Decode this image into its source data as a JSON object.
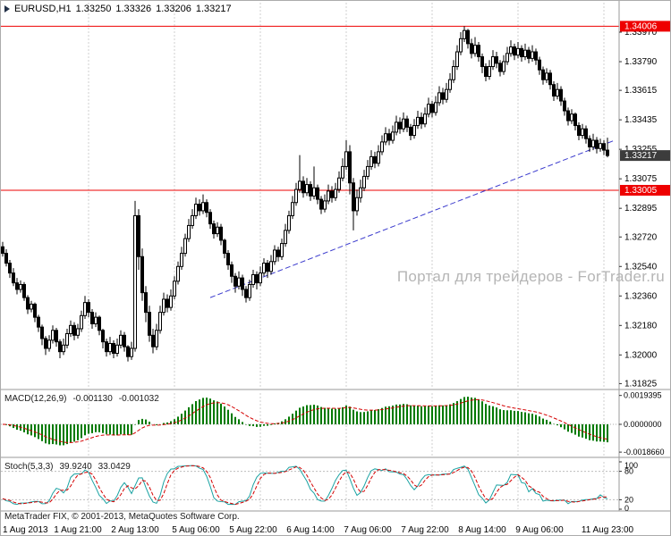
{
  "title": {
    "symbol_period": "EURUSD,H1",
    "open": "1.33250",
    "high": "1.33326",
    "low": "1.33206",
    "close": "1.33217"
  },
  "watermark": "Портал для трейдеров - ForTrader.ru",
  "footer": {
    "copyright": "MetaTrader FIX, © 2001-2013, MetaQuotes Software Corp."
  },
  "colors": {
    "background": "#ffffff",
    "grid": "#cfcfcf",
    "candle_bull": "#ffffff",
    "candle_bear": "#000000",
    "candle_outline": "#000000",
    "red_line": "#ee0000",
    "trendline": "#3b3bcd",
    "axis_text": "#000000",
    "marker_line_bg": "#ee0000",
    "marker_current_bg": "#3c3c3c",
    "macd_histogram": "#007a00",
    "macd_signal": "#d40000",
    "stoch_main": "#1aa3a3",
    "stoch_signal": "#d40000",
    "watermark": "#b5b5b5"
  },
  "chart_data": {
    "type": "candlestick",
    "title": "EURUSD,H1",
    "main": {
      "price_max": 1.3415,
      "price_min": 1.318,
      "axis_labels": [
        "1.33970",
        "1.33790",
        "1.33615",
        "1.33435",
        "1.33255",
        "1.33075",
        "1.32895",
        "1.32720",
        "1.32540",
        "1.32360",
        "1.32180",
        "1.32000",
        "1.31825"
      ],
      "markers": {
        "high": {
          "label": "1.34006",
          "price": 1.34006
        },
        "level": {
          "label": "1.33005",
          "price": 1.33005
        },
        "current": {
          "label": "1.33217",
          "price": 1.33217
        }
      },
      "horizontal_lines": [
        1.34006,
        1.33005
      ],
      "trendline": {
        "from_index": 58,
        "from_price": 1.3235,
        "to_index": 171,
        "to_price": 1.3331
      },
      "day_separator_indices": [
        24,
        48,
        72,
        96,
        120,
        144,
        168
      ]
    },
    "time_labels": [
      {
        "index": 0,
        "label": "1 Aug 2013"
      },
      {
        "index": 21,
        "label": "1 Aug 21:00"
      },
      {
        "index": 37,
        "label": "2 Aug 13:00"
      },
      {
        "index": 54,
        "label": "5 Aug 06:00"
      },
      {
        "index": 70,
        "label": "5 Aug 22:00"
      },
      {
        "index": 86,
        "label": "6 Aug 14:00"
      },
      {
        "index": 102,
        "label": "7 Aug 06:00"
      },
      {
        "index": 118,
        "label": "7 Aug 22:00"
      },
      {
        "index": 134,
        "label": "8 Aug 14:00"
      },
      {
        "index": 150,
        "label": "9 Aug 06:00"
      },
      {
        "index": 169,
        "label": "11 Aug 23:00"
      }
    ],
    "macd": {
      "name": "MACD(12,26,9)",
      "value_main": "-0.001130",
      "value_signal": "-0.001032",
      "params": [
        12,
        26,
        9
      ],
      "scale_max": 0.0021,
      "axis_labels": [
        "0.0019395",
        "0.0000000",
        "-0.0018660"
      ]
    },
    "stoch": {
      "name": "Stoch(5,3,3)",
      "value_main": "39.9240",
      "value_signal": "33.0429",
      "params": [
        5,
        3,
        3
      ],
      "levels": [
        80,
        20
      ],
      "axis_labels": [
        "100",
        "80",
        "20",
        "0"
      ]
    },
    "candles": [
      [
        1.3266,
        1.3269,
        1.326,
        1.3262
      ],
      [
        1.3262,
        1.32645,
        1.3254,
        1.3256
      ],
      [
        1.3256,
        1.3258,
        1.3247,
        1.325
      ],
      [
        1.325,
        1.3253,
        1.3242,
        1.3244
      ],
      [
        1.3244,
        1.3247,
        1.3237,
        1.324
      ],
      [
        1.324,
        1.32455,
        1.3238,
        1.3243
      ],
      [
        1.3243,
        1.32445,
        1.3233,
        1.3235
      ],
      [
        1.3235,
        1.32365,
        1.3225,
        1.3228
      ],
      [
        1.3228,
        1.3233,
        1.3226,
        1.3231
      ],
      [
        1.3231,
        1.3232,
        1.322,
        1.3223
      ],
      [
        1.3223,
        1.32245,
        1.3214,
        1.3217
      ],
      [
        1.3217,
        1.32185,
        1.3206,
        1.321
      ],
      [
        1.321,
        1.32115,
        1.32,
        1.3204
      ],
      [
        1.3204,
        1.3212,
        1.3202,
        1.3209
      ],
      [
        1.3209,
        1.3218,
        1.3207,
        1.3215
      ],
      [
        1.3215,
        1.32165,
        1.3205,
        1.3208
      ],
      [
        1.3208,
        1.32095,
        1.3198,
        1.3202
      ],
      [
        1.3202,
        1.321,
        1.32,
        1.3206
      ],
      [
        1.3206,
        1.3216,
        1.3204,
        1.3213
      ],
      [
        1.3213,
        1.3221,
        1.3211,
        1.3218
      ],
      [
        1.3218,
        1.322,
        1.3209,
        1.3212
      ],
      [
        1.3212,
        1.3219,
        1.321,
        1.3216
      ],
      [
        1.3216,
        1.3227,
        1.3214,
        1.3224
      ],
      [
        1.3224,
        1.3236,
        1.3222,
        1.3232
      ],
      [
        1.3232,
        1.3234,
        1.3223,
        1.3226
      ],
      [
        1.3226,
        1.3228,
        1.3216,
        1.3219
      ],
      [
        1.3219,
        1.3226,
        1.3217,
        1.3223
      ],
      [
        1.3223,
        1.3224,
        1.3212,
        1.3215
      ],
      [
        1.3215,
        1.3216,
        1.3204,
        1.3208
      ],
      [
        1.3208,
        1.321,
        1.3199,
        1.3202
      ],
      [
        1.3202,
        1.3211,
        1.32,
        1.3207
      ],
      [
        1.3207,
        1.3209,
        1.3198,
        1.3201
      ],
      [
        1.3201,
        1.321,
        1.3199,
        1.3206
      ],
      [
        1.3206,
        1.3215,
        1.3204,
        1.3212
      ],
      [
        1.3212,
        1.3214,
        1.3202,
        1.3205
      ],
      [
        1.3205,
        1.3206,
        1.3196,
        1.3199
      ],
      [
        1.3199,
        1.3208,
        1.3197,
        1.3204
      ],
      [
        1.3204,
        1.3294,
        1.3202,
        1.3285
      ],
      [
        1.3285,
        1.3289,
        1.3252,
        1.326
      ],
      [
        1.326,
        1.3265,
        1.3233,
        1.3238
      ],
      [
        1.3238,
        1.3242,
        1.322,
        1.3226
      ],
      [
        1.3226,
        1.323,
        1.3208,
        1.3212
      ],
      [
        1.3212,
        1.3216,
        1.3201,
        1.3205
      ],
      [
        1.3205,
        1.3219,
        1.3203,
        1.3215
      ],
      [
        1.3215,
        1.323,
        1.3213,
        1.3226
      ],
      [
        1.3226,
        1.3238,
        1.3224,
        1.3234
      ],
      [
        1.3234,
        1.3237,
        1.3226,
        1.3229
      ],
      [
        1.3229,
        1.324,
        1.3227,
        1.3236
      ],
      [
        1.3236,
        1.3248,
        1.3234,
        1.3245
      ],
      [
        1.3245,
        1.3257,
        1.3243,
        1.3254
      ],
      [
        1.3254,
        1.3266,
        1.3252,
        1.3262
      ],
      [
        1.3262,
        1.3274,
        1.326,
        1.3271
      ],
      [
        1.3271,
        1.3283,
        1.3269,
        1.3279
      ],
      [
        1.3279,
        1.3289,
        1.3277,
        1.3285
      ],
      [
        1.3285,
        1.3296,
        1.3283,
        1.3292
      ],
      [
        1.3292,
        1.3295,
        1.3285,
        1.3288
      ],
      [
        1.3288,
        1.3298,
        1.3286,
        1.3293
      ],
      [
        1.3293,
        1.3295,
        1.3284,
        1.3287
      ],
      [
        1.3287,
        1.3289,
        1.3277,
        1.328
      ],
      [
        1.328,
        1.3282,
        1.3271,
        1.3274
      ],
      [
        1.3274,
        1.3281,
        1.3272,
        1.3278
      ],
      [
        1.3278,
        1.328,
        1.3267,
        1.327
      ],
      [
        1.327,
        1.3271,
        1.3259,
        1.3262
      ],
      [
        1.3262,
        1.3264,
        1.3252,
        1.3255
      ],
      [
        1.3255,
        1.3257,
        1.3244,
        1.3248
      ],
      [
        1.3248,
        1.325,
        1.3238,
        1.3242
      ],
      [
        1.3242,
        1.3251,
        1.324,
        1.3247
      ],
      [
        1.3247,
        1.3249,
        1.3236,
        1.324
      ],
      [
        1.324,
        1.3242,
        1.3232,
        1.3235
      ],
      [
        1.3235,
        1.3246,
        1.3233,
        1.3243
      ],
      [
        1.3243,
        1.3252,
        1.3241,
        1.3249
      ],
      [
        1.3249,
        1.3251,
        1.324,
        1.3244
      ],
      [
        1.3244,
        1.3254,
        1.3242,
        1.325
      ],
      [
        1.325,
        1.3259,
        1.3248,
        1.3256
      ],
      [
        1.3256,
        1.3258,
        1.3247,
        1.3251
      ],
      [
        1.3251,
        1.3261,
        1.3249,
        1.3257
      ],
      [
        1.3257,
        1.3267,
        1.3255,
        1.3264
      ],
      [
        1.3264,
        1.3266,
        1.3257,
        1.326
      ],
      [
        1.326,
        1.3271,
        1.3258,
        1.3268
      ],
      [
        1.3268,
        1.328,
        1.3266,
        1.3276
      ],
      [
        1.3276,
        1.3288,
        1.3274,
        1.3285
      ],
      [
        1.3285,
        1.3297,
        1.3283,
        1.3293
      ],
      [
        1.3293,
        1.3305,
        1.3291,
        1.3301
      ],
      [
        1.3301,
        1.3322,
        1.3299,
        1.3306
      ],
      [
        1.3306,
        1.3309,
        1.3296,
        1.3299
      ],
      [
        1.3299,
        1.3308,
        1.3297,
        1.3304
      ],
      [
        1.3304,
        1.3306,
        1.3294,
        1.3297
      ],
      [
        1.3297,
        1.3315,
        1.3295,
        1.3302
      ],
      [
        1.3302,
        1.3304,
        1.3292,
        1.3295
      ],
      [
        1.3295,
        1.3297,
        1.3286,
        1.3289
      ],
      [
        1.3289,
        1.3298,
        1.3287,
        1.3294
      ],
      [
        1.3294,
        1.3304,
        1.3292,
        1.33
      ],
      [
        1.33,
        1.3303,
        1.3293,
        1.3296
      ],
      [
        1.3296,
        1.3305,
        1.3294,
        1.3301
      ],
      [
        1.3301,
        1.3312,
        1.3299,
        1.3308
      ],
      [
        1.3308,
        1.332,
        1.3306,
        1.3315
      ],
      [
        1.3315,
        1.3331,
        1.3313,
        1.3324
      ],
      [
        1.3324,
        1.3328,
        1.3298,
        1.3305
      ],
      [
        1.3305,
        1.3308,
        1.3276,
        1.3288
      ],
      [
        1.3288,
        1.3301,
        1.3285,
        1.3296
      ],
      [
        1.3296,
        1.3307,
        1.3293,
        1.3302
      ],
      [
        1.3302,
        1.3313,
        1.33,
        1.3309
      ],
      [
        1.3309,
        1.3319,
        1.3307,
        1.3315
      ],
      [
        1.3315,
        1.3325,
        1.3313,
        1.3321
      ],
      [
        1.3321,
        1.3324,
        1.3314,
        1.3317
      ],
      [
        1.3317,
        1.3328,
        1.3315,
        1.3324
      ],
      [
        1.3324,
        1.3334,
        1.3322,
        1.333
      ],
      [
        1.333,
        1.3339,
        1.3328,
        1.3335
      ],
      [
        1.3335,
        1.3338,
        1.3328,
        1.3331
      ],
      [
        1.3331,
        1.334,
        1.3329,
        1.3336
      ],
      [
        1.3336,
        1.3346,
        1.3334,
        1.3342
      ],
      [
        1.3342,
        1.3345,
        1.3335,
        1.3338
      ],
      [
        1.3338,
        1.3348,
        1.3336,
        1.3344
      ],
      [
        1.3344,
        1.3346,
        1.3336,
        1.3339
      ],
      [
        1.3339,
        1.3341,
        1.3331,
        1.3334
      ],
      [
        1.3334,
        1.3344,
        1.3332,
        1.334
      ],
      [
        1.334,
        1.3349,
        1.3338,
        1.3345
      ],
      [
        1.3345,
        1.3348,
        1.3338,
        1.3341
      ],
      [
        1.3341,
        1.3351,
        1.3339,
        1.3347
      ],
      [
        1.3347,
        1.3357,
        1.3345,
        1.3353
      ],
      [
        1.3353,
        1.3355,
        1.3345,
        1.3348
      ],
      [
        1.3348,
        1.3358,
        1.3346,
        1.3354
      ],
      [
        1.3354,
        1.3364,
        1.3352,
        1.336
      ],
      [
        1.336,
        1.3363,
        1.3353,
        1.3356
      ],
      [
        1.3356,
        1.3366,
        1.3354,
        1.3362
      ],
      [
        1.3362,
        1.3372,
        1.336,
        1.3368
      ],
      [
        1.3368,
        1.338,
        1.3366,
        1.3376
      ],
      [
        1.3376,
        1.3389,
        1.3374,
        1.3385
      ],
      [
        1.3385,
        1.3397,
        1.3383,
        1.3393
      ],
      [
        1.3393,
        1.34006,
        1.3391,
        1.3398
      ],
      [
        1.3398,
        1.3399,
        1.3387,
        1.339
      ],
      [
        1.339,
        1.3393,
        1.3381,
        1.3384
      ],
      [
        1.3384,
        1.3394,
        1.3382,
        1.3389
      ],
      [
        1.3389,
        1.3391,
        1.3379,
        1.3382
      ],
      [
        1.3382,
        1.3384,
        1.3372,
        1.3376
      ],
      [
        1.3376,
        1.3378,
        1.3367,
        1.337
      ],
      [
        1.337,
        1.338,
        1.3368,
        1.3376
      ],
      [
        1.3376,
        1.3386,
        1.3374,
        1.3382
      ],
      [
        1.3382,
        1.3385,
        1.3375,
        1.3378
      ],
      [
        1.3378,
        1.338,
        1.337,
        1.3373
      ],
      [
        1.3373,
        1.3383,
        1.3371,
        1.3379
      ],
      [
        1.3379,
        1.3388,
        1.3377,
        1.3384
      ],
      [
        1.3384,
        1.3392,
        1.3382,
        1.3388
      ],
      [
        1.3388,
        1.339,
        1.338,
        1.3383
      ],
      [
        1.3383,
        1.3391,
        1.3381,
        1.3387
      ],
      [
        1.3387,
        1.3389,
        1.3379,
        1.3382
      ],
      [
        1.3382,
        1.339,
        1.338,
        1.3386
      ],
      [
        1.3386,
        1.3388,
        1.3378,
        1.3381
      ],
      [
        1.3381,
        1.3389,
        1.3379,
        1.3385
      ],
      [
        1.3385,
        1.3387,
        1.3377,
        1.338
      ],
      [
        1.338,
        1.3382,
        1.3371,
        1.3374
      ],
      [
        1.3374,
        1.3376,
        1.3365,
        1.3368
      ],
      [
        1.3368,
        1.3375,
        1.3366,
        1.3372
      ],
      [
        1.3372,
        1.3374,
        1.3362,
        1.3365
      ],
      [
        1.3365,
        1.3367,
        1.3355,
        1.3358
      ],
      [
        1.3358,
        1.3366,
        1.3356,
        1.3362
      ],
      [
        1.3362,
        1.3364,
        1.3352,
        1.3355
      ],
      [
        1.3355,
        1.3357,
        1.3346,
        1.3349
      ],
      [
        1.3349,
        1.3351,
        1.334,
        1.3343
      ],
      [
        1.3343,
        1.335,
        1.3341,
        1.3347
      ],
      [
        1.3347,
        1.3348,
        1.3337,
        1.334
      ],
      [
        1.334,
        1.3342,
        1.3331,
        1.3334
      ],
      [
        1.3334,
        1.3341,
        1.3332,
        1.3338
      ],
      [
        1.3338,
        1.334,
        1.3329,
        1.3332
      ],
      [
        1.3332,
        1.3334,
        1.3324,
        1.3327
      ],
      [
        1.3327,
        1.3335,
        1.3325,
        1.3331
      ],
      [
        1.3331,
        1.3333,
        1.3323,
        1.3326
      ],
      [
        1.3326,
        1.3332,
        1.3324,
        1.3329
      ],
      [
        1.3329,
        1.3331,
        1.3322,
        1.3325
      ],
      [
        1.3325,
        1.33326,
        1.33206,
        1.33217
      ]
    ]
  }
}
